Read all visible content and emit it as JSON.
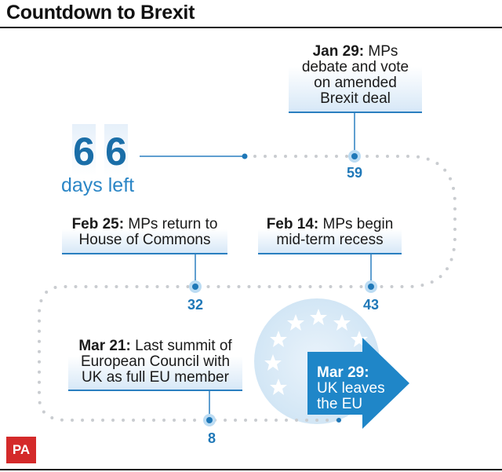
{
  "title": "Countdown to Brexit",
  "countdown": {
    "digit_1": "6",
    "digit_2": "6",
    "caption": "days left"
  },
  "events": [
    {
      "date": "Jan 29:",
      "lines": [
        "MPs",
        "debate and vote",
        "on amended",
        "Brexit deal"
      ],
      "days": "59"
    },
    {
      "date": "Feb 14:",
      "lines": [
        "MPs begin",
        "mid-term recess"
      ],
      "days": "43"
    },
    {
      "date": "Feb 25:",
      "lines": [
        "MPs return to",
        "House of Commons"
      ],
      "days": "32"
    },
    {
      "date": "Mar 21:",
      "lines": [
        "Last summit of",
        "European Council with",
        "UK as full EU member"
      ],
      "days": "8"
    }
  ],
  "final_event": {
    "date": "Mar 29:",
    "lines": [
      "UK leaves",
      "the EU"
    ]
  },
  "logo": "PA",
  "colors": {
    "accent_blue": "#1f78b8",
    "arrow_blue": "#1f86c8",
    "path_dots": "#c9ccd0",
    "logo_red": "#d42a2a"
  }
}
